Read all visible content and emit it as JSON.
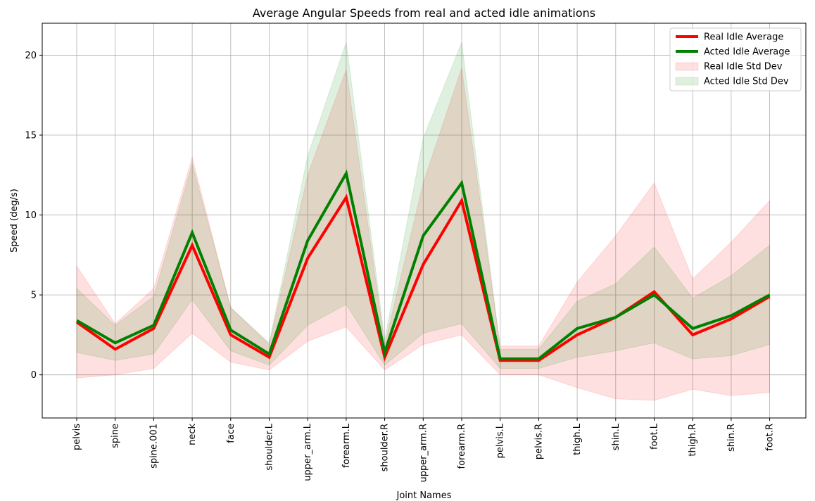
{
  "chart_data": {
    "type": "line",
    "title": "Average Angular Speeds from real and acted idle animations",
    "xlabel": "Joint Names",
    "ylabel": "Speed (deg/s)",
    "ylim": [
      -2.7,
      22
    ],
    "yticks": [
      0,
      5,
      10,
      15,
      20
    ],
    "grid": true,
    "legend_position": "top-right",
    "categories": [
      "pelvis",
      "spine",
      "spine.001",
      "neck",
      "face",
      "shoulder.L",
      "upper_arm.L",
      "forearm.L",
      "shoulder.R",
      "upper_arm.R",
      "forearm.R",
      "pelvis.L",
      "pelvis.R",
      "thigh.L",
      "shin.L",
      "foot.L",
      "thigh.R",
      "shin.R",
      "foot.R"
    ],
    "series": [
      {
        "name": "Real Idle Average",
        "kind": "line",
        "color": "#ff0000",
        "values": [
          3.3,
          1.6,
          2.9,
          8.1,
          2.5,
          1.1,
          7.3,
          11.1,
          1.1,
          6.9,
          10.9,
          0.9,
          0.9,
          2.5,
          3.6,
          5.2,
          2.5,
          3.5,
          4.9
        ]
      },
      {
        "name": "Acted Idle Average",
        "kind": "line",
        "color": "#008000",
        "values": [
          3.4,
          2.0,
          3.1,
          8.9,
          2.8,
          1.3,
          8.4,
          12.6,
          1.4,
          8.7,
          12.0,
          1.0,
          1.0,
          2.9,
          3.6,
          5.0,
          2.9,
          3.7,
          5.0
        ]
      },
      {
        "name": "Real Idle Std Dev",
        "kind": "band",
        "color": "#ff0000",
        "lower": [
          -0.2,
          0.0,
          0.4,
          2.6,
          0.8,
          0.3,
          2.1,
          3.0,
          0.3,
          1.9,
          2.5,
          0.0,
          0.0,
          -0.8,
          -1.5,
          -1.6,
          -0.9,
          -1.3,
          -1.1
        ],
        "upper": [
          6.8,
          3.2,
          5.4,
          13.6,
          4.2,
          1.9,
          12.5,
          19.1,
          1.9,
          12.0,
          19.2,
          1.8,
          1.8,
          5.8,
          8.7,
          12.0,
          6.0,
          8.3,
          10.9
        ]
      },
      {
        "name": "Acted Idle Std Dev",
        "kind": "band",
        "color": "#008000",
        "lower": [
          1.4,
          0.9,
          1.3,
          4.7,
          1.5,
          0.6,
          3.1,
          4.4,
          0.6,
          2.6,
          3.2,
          0.4,
          0.4,
          1.1,
          1.5,
          2.0,
          1.0,
          1.2,
          1.9
        ],
        "upper": [
          5.4,
          3.1,
          4.9,
          13.2,
          4.2,
          2.0,
          13.7,
          20.8,
          2.2,
          14.8,
          20.8,
          1.6,
          1.6,
          4.6,
          5.7,
          8.0,
          4.8,
          6.2,
          8.1
        ]
      }
    ]
  }
}
